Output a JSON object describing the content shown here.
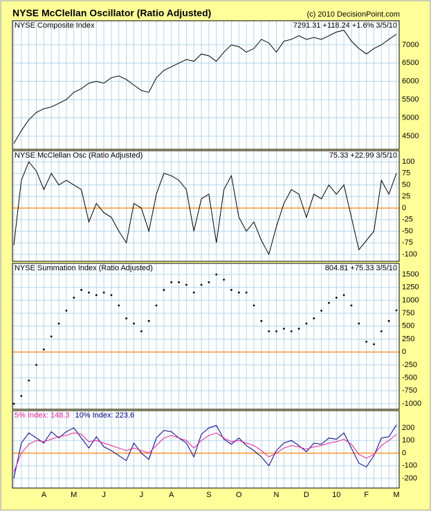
{
  "title": "NYSE McClellan Oscillator (Ratio Adjusted)",
  "copyright": "(c) 2010 DecisionPoint.com",
  "chart_data": [
    {
      "type": "line",
      "style": "line",
      "title": "NYSE Composite Index",
      "info": "7291.31 +118.24 +1.6% 3/5/10",
      "grid": true,
      "ylim": [
        4140,
        7660
      ],
      "yticks": [
        4500,
        5000,
        5500,
        6000,
        6500,
        7000
      ],
      "series": [
        {
          "name": "NYSE Composite Index",
          "color": "#000000",
          "values": [
            4300,
            4650,
            4950,
            5150,
            5250,
            5300,
            5400,
            5500,
            5700,
            5800,
            5950,
            6000,
            5950,
            6100,
            6150,
            6050,
            5900,
            5750,
            5700,
            6100,
            6300,
            6400,
            6500,
            6600,
            6550,
            6750,
            6700,
            6550,
            6800,
            7000,
            6950,
            6800,
            6900,
            7150,
            7050,
            6800,
            7100,
            7150,
            7250,
            7150,
            7200,
            7150,
            7250,
            7350,
            7400,
            7100,
            6900,
            6750,
            6900,
            7000,
            7150,
            7291.31
          ]
        }
      ]
    },
    {
      "type": "line",
      "style": "line",
      "title": "NYSE McClellan Osc (Ratio Adjusted)",
      "info": "75.33 +22.99 3/5/10",
      "grid": true,
      "zero_line_color": "#ff8000",
      "ylim": [
        -115,
        124
      ],
      "yticks": [
        100,
        75,
        50,
        25,
        0,
        -25,
        -50,
        -75,
        -100
      ],
      "series": [
        {
          "name": "NYSE McClellan Osc (Ratio Adjusted)",
          "color": "#000000",
          "values": [
            -80,
            60,
            100,
            80,
            40,
            75,
            50,
            60,
            50,
            40,
            -30,
            10,
            -10,
            -20,
            -50,
            -75,
            10,
            0,
            -50,
            30,
            75,
            70,
            60,
            40,
            -50,
            20,
            30,
            -75,
            40,
            70,
            -20,
            -50,
            -30,
            -70,
            -100,
            -40,
            10,
            40,
            30,
            -20,
            30,
            20,
            50,
            30,
            50,
            -20,
            -90,
            -70,
            -50,
            60,
            30,
            75.33
          ]
        }
      ]
    },
    {
      "type": "line",
      "style": "dots",
      "title": "NYSE Summation Index (Ratio Adjusted)",
      "info": "804.81 +75.33 3/5/10",
      "grid": true,
      "zero_line_color": "#ff8000",
      "ylim": [
        -1107,
        1714
      ],
      "yticks": [
        1500,
        1250,
        1000,
        750,
        500,
        250,
        0,
        -250,
        -500,
        -750,
        -1000
      ],
      "series": [
        {
          "name": "NYSE Summation Index (Ratio Adjusted)",
          "color": "#000000",
          "values": [
            -1000,
            -850,
            -550,
            -250,
            50,
            300,
            550,
            800,
            1050,
            1200,
            1150,
            1100,
            1150,
            1100,
            900,
            650,
            550,
            400,
            600,
            900,
            1200,
            1350,
            1350,
            1300,
            1150,
            1300,
            1350,
            1500,
            1400,
            1200,
            1150,
            1150,
            900,
            600,
            400,
            400,
            450,
            400,
            450,
            550,
            650,
            800,
            950,
            1050,
            1100,
            900,
            550,
            200,
            150,
            400,
            600,
            804.81
          ]
        }
      ]
    },
    {
      "type": "line",
      "style": "line",
      "grid": true,
      "legend": "top-left",
      "zero_line_color": "#ff8000",
      "ylim": [
        -277,
        337
      ],
      "yticks": [
        200,
        100,
        0,
        -100,
        -200
      ],
      "categories": [
        null,
        null,
        null,
        null,
        "A",
        null,
        null,
        null,
        "M",
        null,
        null,
        null,
        "J",
        null,
        null,
        null,
        null,
        "J",
        null,
        null,
        null,
        "A",
        null,
        null,
        null,
        null,
        "S",
        null,
        null,
        null,
        "O",
        null,
        null,
        null,
        null,
        "N",
        null,
        null,
        null,
        "D",
        null,
        null,
        null,
        "10",
        null,
        null,
        null,
        "F",
        null,
        null,
        null,
        "M"
      ],
      "series": [
        {
          "name": "10% Index: 223.6",
          "color": "#000080",
          "values": [
            -200,
            80,
            160,
            120,
            80,
            170,
            120,
            170,
            200,
            120,
            40,
            130,
            50,
            20,
            -20,
            -60,
            80,
            0,
            -50,
            120,
            180,
            170,
            120,
            80,
            -30,
            150,
            200,
            220,
            110,
            70,
            120,
            60,
            20,
            -30,
            -100,
            20,
            80,
            100,
            60,
            10,
            80,
            70,
            120,
            110,
            160,
            40,
            -80,
            -110,
            -20,
            120,
            130,
            223.6
          ]
        },
        {
          "name": "5% Index: 148.3",
          "color": "#e0209a",
          "values": [
            -150,
            0,
            70,
            100,
            90,
            110,
            130,
            140,
            160,
            150,
            90,
            100,
            80,
            60,
            40,
            20,
            40,
            20,
            0,
            60,
            120,
            140,
            120,
            100,
            40,
            100,
            140,
            160,
            120,
            90,
            100,
            80,
            60,
            20,
            -30,
            0,
            40,
            60,
            50,
            30,
            50,
            60,
            80,
            90,
            110,
            70,
            -10,
            -40,
            -10,
            60,
            100,
            148.3
          ]
        }
      ]
    }
  ]
}
